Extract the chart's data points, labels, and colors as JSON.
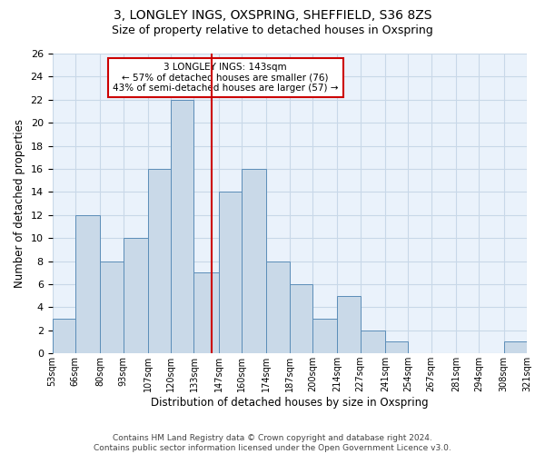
{
  "title1": "3, LONGLEY INGS, OXSPRING, SHEFFIELD, S36 8ZS",
  "title2": "Size of property relative to detached houses in Oxspring",
  "xlabel": "Distribution of detached houses by size in Oxspring",
  "ylabel": "Number of detached properties",
  "bin_labels": [
    "53sqm",
    "66sqm",
    "80sqm",
    "93sqm",
    "107sqm",
    "120sqm",
    "133sqm",
    "147sqm",
    "160sqm",
    "174sqm",
    "187sqm",
    "200sqm",
    "214sqm",
    "227sqm",
    "241sqm",
    "254sqm",
    "267sqm",
    "281sqm",
    "294sqm",
    "308sqm",
    "321sqm"
  ],
  "bar_values": [
    3,
    12,
    8,
    10,
    16,
    22,
    7,
    14,
    16,
    8,
    6,
    3,
    5,
    2,
    1,
    0,
    0,
    0,
    0,
    1
  ],
  "bin_edges": [
    53,
    66,
    80,
    93,
    107,
    120,
    133,
    147,
    160,
    174,
    187,
    200,
    214,
    227,
    241,
    254,
    267,
    281,
    294,
    308,
    321
  ],
  "property_size": 143,
  "bar_color": "#c9d9e8",
  "bar_edge_color": "#5b8db8",
  "vline_color": "#cc0000",
  "annotation_line1": "3 LONGLEY INGS: 143sqm",
  "annotation_line2": "← 57% of detached houses are smaller (76)",
  "annotation_line3": "43% of semi-detached houses are larger (57) →",
  "annotation_box_color": "#ffffff",
  "annotation_box_edge": "#cc0000",
  "ylim": [
    0,
    26
  ],
  "yticks": [
    0,
    2,
    4,
    6,
    8,
    10,
    12,
    14,
    16,
    18,
    20,
    22,
    24,
    26
  ],
  "grid_color": "#c8d8e8",
  "background_color": "#eaf2fb",
  "footer_text": "Contains HM Land Registry data © Crown copyright and database right 2024.\nContains public sector information licensed under the Open Government Licence v3.0.",
  "title1_fontsize": 10,
  "title2_fontsize": 9,
  "xlabel_fontsize": 8.5,
  "ylabel_fontsize": 8.5,
  "annotation_fontsize": 7.5,
  "footer_fontsize": 6.5
}
